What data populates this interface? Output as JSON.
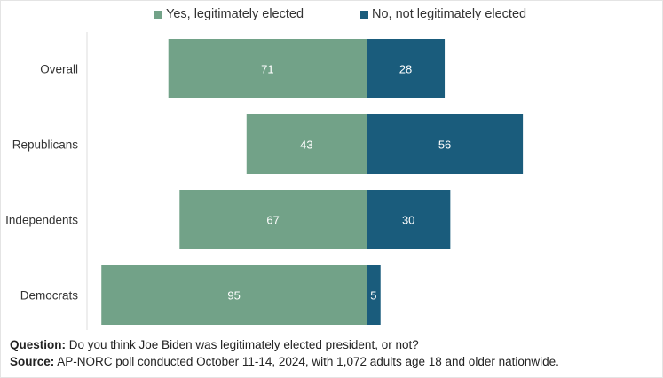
{
  "chart_data": {
    "type": "bar",
    "orientation": "horizontal-diverging",
    "categories": [
      "Overall",
      "Republicans",
      "Independents",
      "Democrats"
    ],
    "series": [
      {
        "name": "Yes, legitimately elected",
        "values": [
          71,
          43,
          67,
          95
        ],
        "color": "#72a288"
      },
      {
        "name": "No, not legitimately elected",
        "values": [
          28,
          56,
          30,
          5
        ],
        "color": "#1a5c7c"
      }
    ],
    "xlim": [
      -95,
      56
    ],
    "data_labels": true,
    "grid": false,
    "legend_position": "top"
  },
  "legend": {
    "yes_label": "Yes, legitimately elected",
    "no_label": "No, not legitimately elected"
  },
  "footer": {
    "question_label": "Question:",
    "question_text": " Do you think Joe Biden was legitimately elected president, or not?",
    "source_label": "Source:",
    "source_text": " AP-NORC poll conducted October 11-14, 2024, with 1,072 adults age 18 and older nationwide."
  }
}
